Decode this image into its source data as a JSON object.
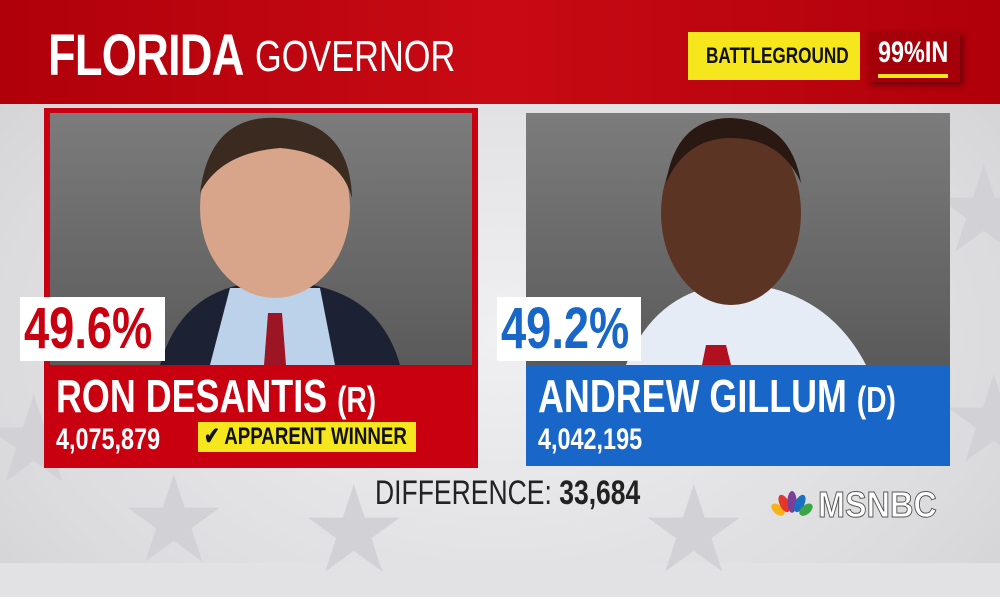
{
  "header": {
    "state": "FLORIDA",
    "race": "GOVERNOR",
    "badge": "BATTLEGROUND",
    "badge_icon": "nbc-peacock-icon",
    "reporting": "99%IN",
    "reporting_pct": 99
  },
  "candidates": [
    {
      "name": "RON DESANTIS",
      "party": "(R)",
      "percent": "49.6%",
      "votes": "4,075,879",
      "status": "APPARENT WINNER",
      "color": "#c8000f"
    },
    {
      "name": "ANDREW GILLUM",
      "party": "(D)",
      "percent": "49.2%",
      "votes": "4,042,195",
      "color": "#1766c8"
    }
  ],
  "difference": {
    "label": "DIFFERENCE:",
    "value": "33,684"
  },
  "network": {
    "logo": "MSNBC"
  },
  "colors": {
    "header_red": "#c80a14",
    "gop_red": "#c8000f",
    "dem_blue": "#1766c8",
    "highlight_yellow": "#f6e61e"
  }
}
